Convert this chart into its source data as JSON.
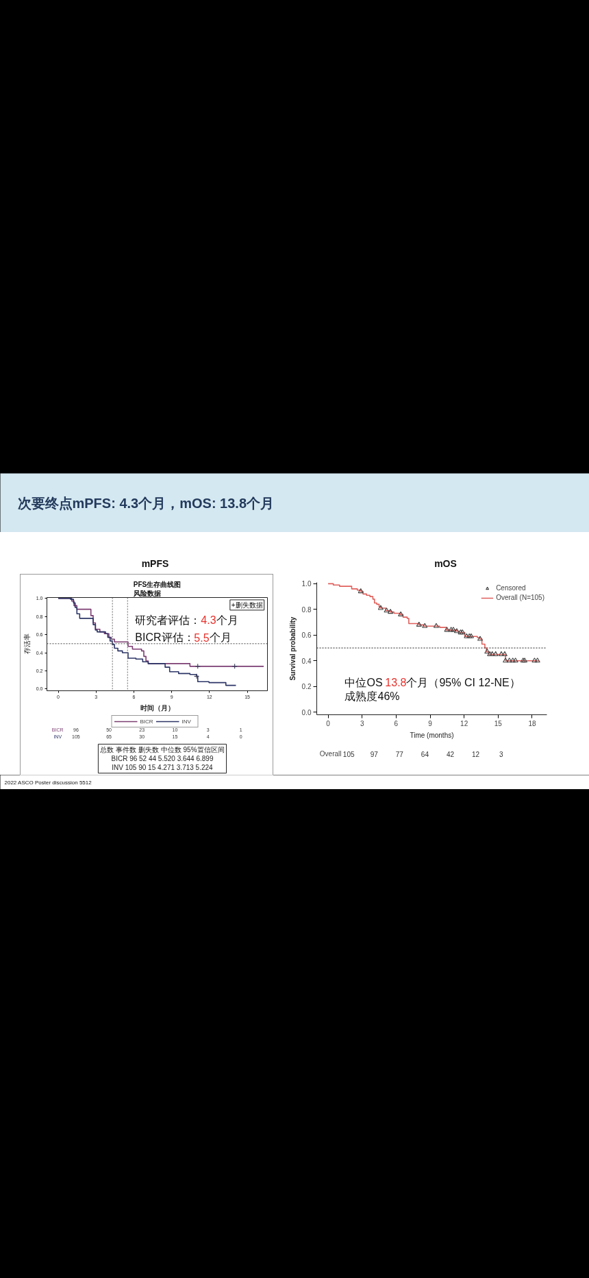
{
  "chart_data": [
    {
      "type": "other",
      "title": "次要终点mPFS: 4.3个月，mOS: 13.8个月"
    },
    {
      "type": "step",
      "title": "mPFS",
      "subtitle": "PFS生存曲线图风险数据",
      "xlabel": "时间（月）",
      "ylabel": "存活率",
      "xlim": [
        -0.9,
        16.6
      ],
      "ylim": [
        -0.02,
        1.01
      ],
      "xticks": [
        0,
        3,
        6,
        9,
        12,
        15
      ],
      "yticks": [
        {
          "value": 0,
          "label": "0.0"
        },
        {
          "value": 0.2,
          "label": "0.2"
        },
        {
          "value": 0.4,
          "label": "0.4"
        },
        {
          "value": 0.6,
          "label": "0.6"
        },
        {
          "value": 0.8,
          "label": "0.8"
        },
        {
          "value": 1,
          "label": "1.0"
        }
      ],
      "series": [
        {
          "name": "BICR",
          "color": "#7b3d72",
          "x": [
            0,
            1.07,
            1.25,
            1.48,
            2.59,
            2.77,
            2.95,
            3.3,
            3.66,
            4.02,
            4.2,
            4.46,
            5.54,
            5.89,
            6.61,
            6.79,
            6.96,
            7.14,
            10.45,
            16.3
          ],
          "values": [
            1.0,
            0.97,
            0.92,
            0.88,
            0.81,
            0.73,
            0.66,
            0.63,
            0.61,
            0.57,
            0.55,
            0.52,
            0.47,
            0.44,
            0.42,
            0.36,
            0.31,
            0.28,
            0.25,
            0.25
          ]
        },
        {
          "name": "INV",
          "color": "#2c3566",
          "x": [
            0,
            0.98,
            1.21,
            1.34,
            1.48,
            1.7,
            2.77,
            2.95,
            3.09,
            3.75,
            3.93,
            4.11,
            4.29,
            4.46,
            4.73,
            5.09,
            5.54,
            6.16,
            6.7,
            7.14,
            8.48,
            8.84,
            9.55,
            10.45,
            10.98,
            11.07,
            11.96,
            13.3,
            14.1
          ],
          "values": [
            1.0,
            0.99,
            0.95,
            0.9,
            0.83,
            0.78,
            0.71,
            0.65,
            0.63,
            0.61,
            0.57,
            0.53,
            0.49,
            0.45,
            0.42,
            0.4,
            0.34,
            0.33,
            0.3,
            0.28,
            0.24,
            0.19,
            0.17,
            0.16,
            0.14,
            0.08,
            0.07,
            0.04,
            0.04
          ]
        },
        {
          "type": "scatter",
          "marker": "cross",
          "color": "#3a3a5a",
          "x": [
            10.98,
            11.07,
            14.0
          ],
          "values": [
            0.14,
            0.25,
            0.25
          ]
        }
      ],
      "ref_lines": [
        {
          "axis": "x",
          "value": 4.3,
          "color": "#666666",
          "line_style": "dotted"
        },
        {
          "axis": "x",
          "value": 5.5,
          "color": "#666666",
          "line_style": "dotted"
        },
        {
          "axis": "y",
          "value": 0.5,
          "color": "#444444",
          "line_style": "dotted"
        }
      ],
      "legend": "bottom",
      "annotations": [
        "+删失数据",
        "研究者评估：4.3个月",
        "BICR评估：5.5个月",
        "BICR",
        "96",
        "50",
        "23",
        "10",
        "3",
        "1",
        "INV",
        "105",
        "65",
        "30",
        "15",
        "4",
        "0",
        "总数 事件数 删失数 中位数 95%置信区间\nBICR 96 52 44 5.520 3.644 6.899\nINV 105 90 15 4.271 3.713 5.224"
      ]
    },
    {
      "type": "step",
      "title": "mOS",
      "xlabel": "Time (months)",
      "ylabel": "Survival probability",
      "xlim": [
        -1,
        19.3
      ],
      "ylim": [
        -0.02,
        1.01
      ],
      "xticks": [
        0,
        3,
        6,
        9,
        12,
        15,
        18
      ],
      "yticks": [
        {
          "value": 0,
          "label": "0.0"
        },
        {
          "value": 0.2,
          "label": "0.2"
        },
        {
          "value": 0.4,
          "label": "0.4"
        },
        {
          "value": 0.6,
          "label": "0.6"
        },
        {
          "value": 0.8,
          "label": "0.8"
        },
        {
          "value": 1,
          "label": "1.0"
        }
      ],
      "series": [
        {
          "name": "Censored",
          "type": "scatter",
          "marker": "triangle",
          "color": "#444444",
          "x": [
            2.88,
            4.64,
            5.16,
            5.5,
            6.41,
            8.02,
            8.53,
            9.54,
            10.48,
            10.85,
            11.05,
            11.35,
            11.69,
            11.85,
            12.22,
            12.46,
            12.62,
            13.41,
            14.03,
            14.27,
            14.48,
            14.78,
            15.28,
            15.58,
            15.65,
            15.99,
            16.29,
            16.53,
            17.2,
            17.34,
            18.21,
            18.47
          ],
          "values": [
            0.94,
            0.81,
            0.79,
            0.78,
            0.76,
            0.68,
            0.67,
            0.67,
            0.64,
            0.64,
            0.64,
            0.63,
            0.62,
            0.62,
            0.59,
            0.59,
            0.59,
            0.57,
            0.47,
            0.45,
            0.45,
            0.45,
            0.45,
            0.45,
            0.4,
            0.4,
            0.4,
            0.4,
            0.4,
            0.4,
            0.4,
            0.4
          ]
        },
        {
          "name": "Overall (N=105)",
          "color": "#e0605c",
          "x": [
            0,
            0.46,
            1.01,
            2.08,
            2.58,
            2.88,
            3.08,
            3.39,
            3.69,
            3.95,
            4.09,
            4.29,
            4.5,
            4.64,
            5.1,
            5.5,
            5.81,
            6.37,
            6.61,
            6.98,
            7.12,
            8.02,
            8.43,
            9.84,
            10.44,
            11.35,
            11.55,
            12.06,
            13.17,
            13.37,
            13.57,
            13.83,
            13.97,
            14.17,
            15.65,
            18.61
          ],
          "values": [
            1.0,
            0.99,
            0.98,
            0.96,
            0.95,
            0.94,
            0.92,
            0.91,
            0.9,
            0.88,
            0.85,
            0.84,
            0.82,
            0.81,
            0.79,
            0.78,
            0.77,
            0.76,
            0.74,
            0.73,
            0.69,
            0.68,
            0.67,
            0.66,
            0.64,
            0.63,
            0.62,
            0.59,
            0.58,
            0.57,
            0.53,
            0.5,
            0.47,
            0.45,
            0.4,
            0.4
          ]
        }
      ],
      "ref_lines": [
        {
          "axis": "y",
          "value": 0.5,
          "color": "#222222",
          "line_style": "dotted"
        }
      ],
      "legend": "top right",
      "annotations": [
        "中位OS 13.8个月（95% CI 12-NE）",
        "成熟度46%",
        "Overall",
        "105",
        "97",
        "77",
        "64",
        "42",
        "12",
        "3"
      ]
    },
    {
      "type": "other",
      "annotations": [
        "2022 ASCO Poster discussion 5512"
      ]
    }
  ]
}
